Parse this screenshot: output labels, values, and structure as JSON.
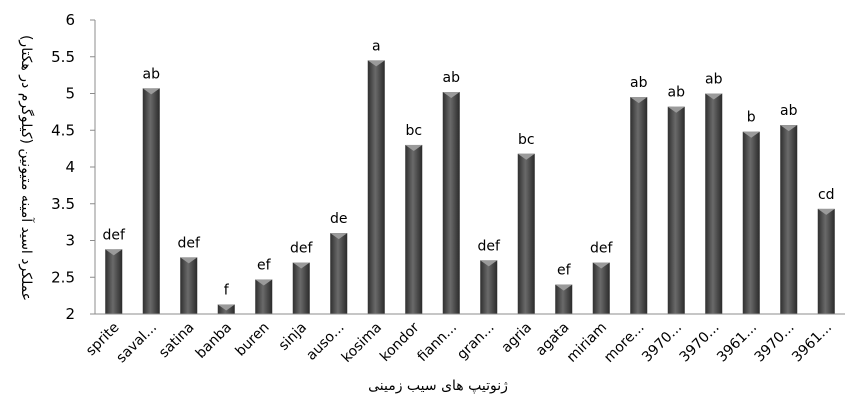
{
  "chart_data": {
    "type": "bar",
    "categories": [
      "sprite",
      "saval...",
      "satina",
      "banba",
      "buren",
      "sinja",
      "auso...",
      "kosima",
      "kondor",
      "fiann...",
      "gran...",
      "agria",
      "agata",
      "miriam",
      "more...",
      "3970...",
      "3970...",
      "3961...",
      "3970...",
      "3961..."
    ],
    "values": [
      2.88,
      5.07,
      2.77,
      2.13,
      2.47,
      2.7,
      3.1,
      5.45,
      4.3,
      5.02,
      2.73,
      4.18,
      2.4,
      2.7,
      4.95,
      4.82,
      5.0,
      4.48,
      4.57,
      3.43
    ],
    "data_labels": [
      "def",
      "ab",
      "def",
      "f",
      "ef",
      "def",
      "de",
      "a",
      "bc",
      "ab",
      "def",
      "bc",
      "ef",
      "def",
      "ab",
      "ab",
      "ab",
      "b",
      "ab",
      "cd"
    ],
    "ylim": [
      2,
      6
    ],
    "yticks": [
      "2",
      "2.5",
      "3",
      "3.5",
      "4",
      "4.5",
      "5",
      "5.5",
      "6"
    ],
    "xlabel": "ژنوتیپ های سیب زمینی",
    "ylabel": "عملکرد اسید آمینه متیونین (کیلوگرم در هکتار)",
    "grid": false,
    "bar_color": "#4a4a4a"
  }
}
